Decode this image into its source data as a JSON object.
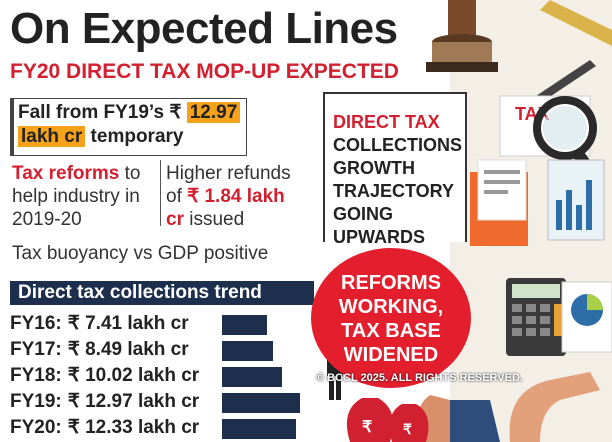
{
  "header": {
    "title": "On Expected Lines",
    "subtitle": "FY20 DIRECT TAX MOP-UP EXPECTED"
  },
  "fall": {
    "line1": "Fall from FY19’s ₹ ",
    "value": "12.97",
    "line2_highlight": "lakh cr",
    "line2_rest": " temporary"
  },
  "reforms": {
    "red": "Tax reforms",
    "rest": " to help industry in 2019-20"
  },
  "refunds": {
    "pre": "Higher refunds of ",
    "red": "₹ 1.84 lakh cr",
    "post": " issued"
  },
  "buoyancy": "Tax buoyancy vs GDP positive",
  "chart_data": {
    "type": "bar",
    "title": "Direct tax collections trend",
    "unit": "lakh cr",
    "categories": [
      "FY16:",
      "FY17:",
      "FY18:",
      "FY19:",
      "FY20:"
    ],
    "values": [
      7.41,
      8.49,
      10.02,
      12.97,
      12.33
    ],
    "labels": [
      "₹ 7.41 lakh cr",
      "₹ 8.49 lakh cr",
      "₹ 10.02 lakh cr",
      "₹ 12.97 lakh cr",
      "₹ 12.33 lakh cr"
    ],
    "bar_color": "#1e2f4d"
  },
  "callout": {
    "red_line": "DIRECT TAX",
    "lines": [
      "COLLECTIONS",
      "GROWTH",
      "TRAJECTORY",
      "GOING",
      "UPWARDS"
    ]
  },
  "circle": {
    "lines": [
      "REFORMS",
      "WORKING,",
      "TAX BASE",
      "WIDENED"
    ],
    "color": "#e31e2d"
  },
  "copyright": "© BCCL 2025. ALL RIGHTS RESERVED.",
  "colors": {
    "accent_red": "#d1202f",
    "highlight_orange": "#f7a21b",
    "navy": "#1e2f4d"
  }
}
